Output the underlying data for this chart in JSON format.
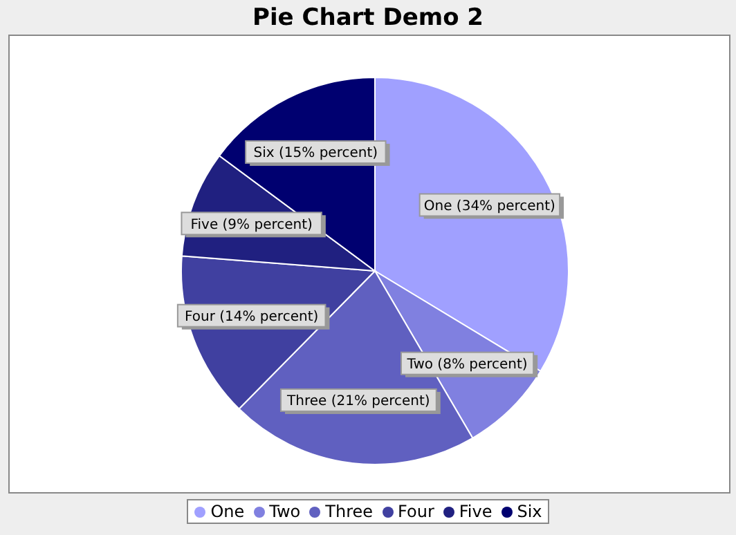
{
  "chart_data": {
    "type": "pie",
    "title": "Pie Chart Demo 2",
    "categories": [
      "One",
      "Two",
      "Three",
      "Four",
      "Five",
      "Six"
    ],
    "values": [
      34,
      8,
      21,
      14,
      9,
      15
    ],
    "colors": [
      "#a0a0ff",
      "#8080e0",
      "#6060c0",
      "#4040a0",
      "#202080",
      "#000070"
    ],
    "value_labels": [
      "One (34% percent)",
      "Two (8% percent)",
      "Three (21% percent)",
      "Four (14% percent)",
      "Five (9% percent)",
      "Six (15% percent)"
    ],
    "legend": "bottom"
  }
}
